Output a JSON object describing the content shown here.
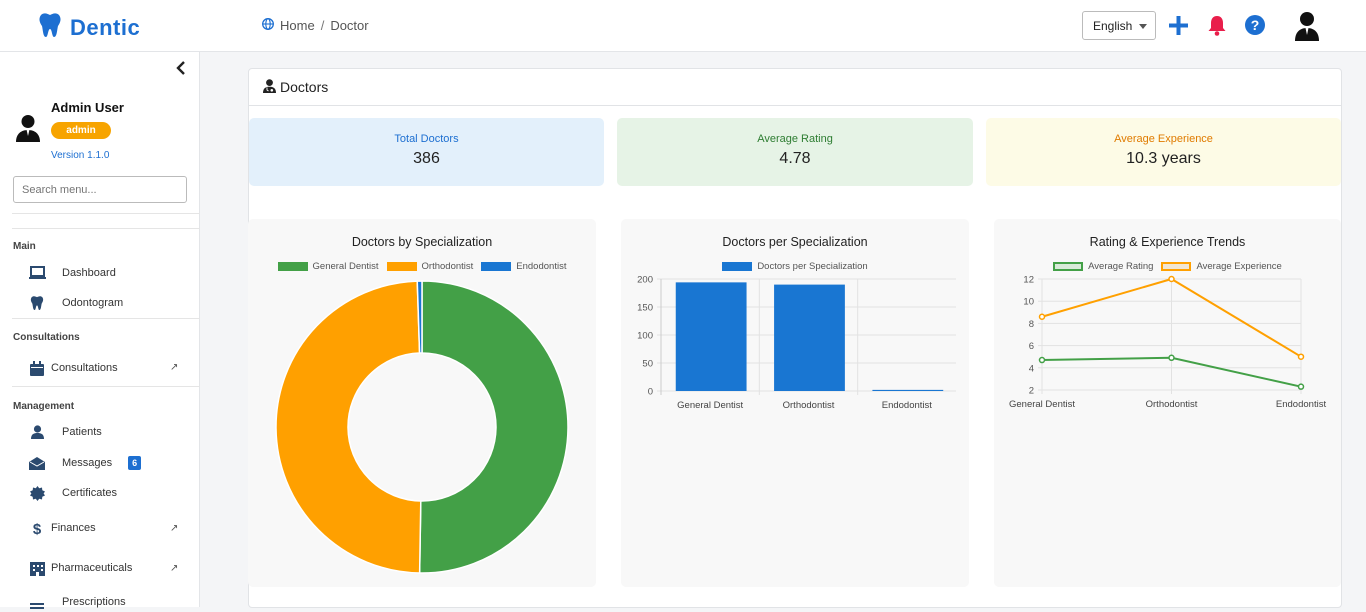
{
  "app": {
    "name": "Dentic"
  },
  "breadcrumb": {
    "home": "Home",
    "separator": "/",
    "current": "Doctor"
  },
  "header": {
    "language": "English"
  },
  "sidebar": {
    "user_name": "Admin User",
    "role": "admin",
    "version": "Version 1.1.0",
    "search_placeholder": "Search menu...",
    "sections": [
      {
        "title": "Main",
        "items": [
          {
            "label": "Dashboard",
            "icon": "laptop-icon"
          },
          {
            "label": "Odontogram",
            "icon": "tooth-icon"
          }
        ]
      },
      {
        "title": "Consultations",
        "items": [
          {
            "label": "Consultations",
            "icon": "calendar-icon",
            "has_submenu": true
          }
        ]
      },
      {
        "title": "Management",
        "items": [
          {
            "label": "Patients",
            "icon": "user-icon"
          },
          {
            "label": "Messages",
            "icon": "envelope-icon",
            "badge": "6"
          },
          {
            "label": "Certificates",
            "icon": "certificate-icon"
          },
          {
            "label": "Finances",
            "icon": "dollar-icon",
            "has_submenu": true
          },
          {
            "label": "Pharmaceuticals",
            "icon": "building-icon",
            "has_submenu": true
          },
          {
            "label": "Prescriptions",
            "icon": "list-icon"
          }
        ]
      }
    ]
  },
  "page": {
    "title": "Doctors"
  },
  "stats": [
    {
      "label": "Total Doctors",
      "value": "386",
      "color": "#1d6fd1",
      "bg": "#e3f0fb"
    },
    {
      "label": "Average Rating",
      "value": "4.78",
      "color": "#2e7d32",
      "bg": "#e6f3e6"
    },
    {
      "label": "Average Experience",
      "value": "10.3 years",
      "color": "#e07b00",
      "bg": "#fdfbe6"
    }
  ],
  "colors": {
    "green": "#43a047",
    "orange": "#ffa000",
    "blue": "#1976d2",
    "brand": "#1d6fd1",
    "bell": "#e91e4b"
  },
  "chart_data": [
    {
      "type": "pie",
      "title": "Doctors by Specialization",
      "categories": [
        "General Dentist",
        "Orthodontist",
        "Endodontist"
      ],
      "values": [
        194,
        190,
        2
      ],
      "colors": [
        "#43a047",
        "#ffa000",
        "#1976d2"
      ],
      "legend": "top"
    },
    {
      "type": "bar",
      "title": "Doctors per Specialization",
      "categories": [
        "General Dentist",
        "Orthodontist",
        "Endodontist"
      ],
      "series": [
        {
          "name": "Doctors per Specialization",
          "values": [
            194,
            190,
            2
          ]
        }
      ],
      "ylim": [
        0,
        200
      ],
      "yticks": [
        0,
        50,
        100,
        150,
        200
      ],
      "grid": true,
      "legend": "top"
    },
    {
      "type": "line",
      "title": "Rating & Experience Trends",
      "categories": [
        "General Dentist",
        "Orthodontist",
        "Endodontist"
      ],
      "series": [
        {
          "name": "Average Rating",
          "values": [
            4.7,
            4.9,
            2.3
          ],
          "color": "#43a047"
        },
        {
          "name": "Average Experience",
          "values": [
            8.6,
            12.0,
            5.0
          ],
          "color": "#ffa000"
        }
      ],
      "ylim": [
        2,
        12
      ],
      "yticks": [
        2,
        4,
        6,
        8,
        10,
        12
      ],
      "grid": true,
      "legend": "top"
    }
  ]
}
